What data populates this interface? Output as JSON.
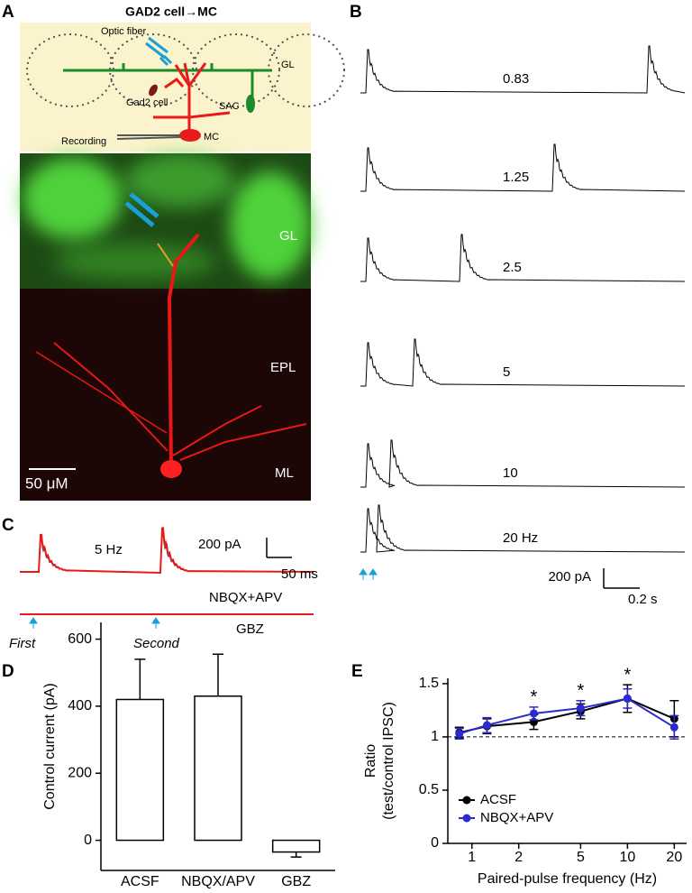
{
  "panel_a": {
    "label": "A",
    "title": "GAD2 cell→MC",
    "optic_fiber": "Optic fiber",
    "gl_schematic": "GL",
    "gad2_cell": "Gad2 cell",
    "sac": "SAC",
    "recording": "Recording",
    "mc": "MC",
    "gl_image": "GL",
    "epl": "EPL",
    "ml": "ML",
    "scale_bar": "50 μM"
  },
  "panel_b": {
    "label": "B",
    "trace_labels": [
      "0.83",
      "1.25",
      "2.5",
      "5",
      "10",
      "20 Hz"
    ],
    "scale_y": "200 pA",
    "scale_x": "0.2 s"
  },
  "panel_c": {
    "label": "C",
    "frequency": "5 Hz",
    "scale_y": "200 pA",
    "scale_x": "50 ms",
    "condition": "NBQX+APV",
    "gbz": "GBZ",
    "first": "First",
    "second": "Second"
  },
  "chart_data": [
    {
      "type": "bar",
      "panel_label": "D",
      "ylabel": "Control current (pA)",
      "categories": [
        "ACSF",
        "NBQX/APV",
        "GBZ"
      ],
      "values": [
        420,
        430,
        -35
      ],
      "errors": [
        120,
        125,
        15
      ],
      "color": "#ffffff",
      "ylim": [
        -90,
        650
      ],
      "yticks": [
        0,
        200,
        400,
        600
      ]
    },
    {
      "type": "line",
      "panel_label": "E",
      "ylabel": [
        "Ratio",
        "(test/control IPSC)"
      ],
      "xlabel": "Paired-pulse frequency (Hz)",
      "xscale": "log",
      "x": [
        0.83,
        1.25,
        2.5,
        5,
        10,
        20
      ],
      "series": [
        {
          "name": "ACSF",
          "color": "#000000",
          "values": [
            1.04,
            1.1,
            1.14,
            1.24,
            1.36,
            1.17
          ],
          "errors": [
            0.05,
            0.07,
            0.07,
            0.07,
            0.13,
            0.17
          ]
        },
        {
          "name": "NBQX+APV",
          "color": "#2a2ad0",
          "values": [
            1.03,
            1.11,
            1.22,
            1.27,
            1.36,
            1.09
          ],
          "errors": [
            0.05,
            0.07,
            0.06,
            0.07,
            0.09,
            0.11
          ]
        }
      ],
      "hline": 1,
      "annotations": [
        {
          "text": "*",
          "x": 2.5
        },
        {
          "text": "*",
          "x": 5
        },
        {
          "text": "*",
          "x": 10
        }
      ],
      "xlim": [
        0.7,
        24
      ],
      "ylim": [
        0,
        1.55
      ],
      "xticks": [
        1,
        2,
        5,
        10,
        20
      ],
      "yticks": [
        0,
        0.5,
        1,
        1.5
      ],
      "legend": "lower left"
    }
  ]
}
